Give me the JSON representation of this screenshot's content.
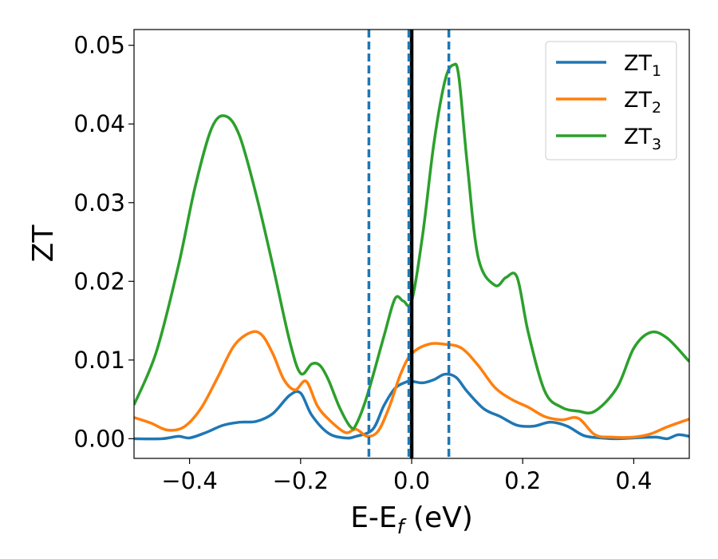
{
  "chart_data": {
    "type": "line",
    "xlabel": {
      "main": "E-E",
      "sub": "f",
      "unit": " (eV)"
    },
    "ylabel": "ZT",
    "xlim": [
      -0.5,
      0.5
    ],
    "ylim": [
      -0.0025,
      0.052
    ],
    "xticks": [
      -0.4,
      -0.2,
      0.0,
      0.2,
      0.4
    ],
    "xtick_labels": [
      "−0.4",
      "−0.2",
      "0.0",
      "0.2",
      "0.4"
    ],
    "yticks": [
      0.0,
      0.01,
      0.02,
      0.03,
      0.04,
      0.05
    ],
    "ytick_labels": [
      "0.00",
      "0.01",
      "0.02",
      "0.03",
      "0.04",
      "0.05"
    ],
    "grid": false,
    "legend_position": "top-right",
    "reference_lines": [
      {
        "x": 0.0,
        "style": "solid",
        "color": "#000000"
      },
      {
        "x": -0.077,
        "style": "dashed",
        "color": "#1f77b4"
      },
      {
        "x": -0.005,
        "style": "dashed",
        "color": "#1f77b4"
      },
      {
        "x": 0.067,
        "style": "dashed",
        "color": "#1f77b4"
      }
    ],
    "series": [
      {
        "name": "ZT",
        "sub": "1",
        "color": "#1f77b4",
        "x": [
          -0.5,
          -0.45,
          -0.42,
          -0.4,
          -0.37,
          -0.34,
          -0.31,
          -0.28,
          -0.25,
          -0.22,
          -0.2,
          -0.18,
          -0.15,
          -0.12,
          -0.1,
          -0.07,
          -0.05,
          -0.03,
          -0.01,
          0.0,
          0.02,
          0.04,
          0.06,
          0.08,
          0.1,
          0.13,
          0.16,
          0.19,
          0.22,
          0.25,
          0.28,
          0.31,
          0.34,
          0.37,
          0.4,
          0.44,
          0.46,
          0.48,
          0.5
        ],
        "y": [
          0.0,
          0.0,
          0.0003,
          0.0001,
          0.0008,
          0.0017,
          0.0021,
          0.0022,
          0.0032,
          0.0055,
          0.0058,
          0.003,
          0.0007,
          0.0001,
          0.0003,
          0.0012,
          0.0042,
          0.0064,
          0.0072,
          0.0073,
          0.0071,
          0.0075,
          0.0082,
          0.0078,
          0.006,
          0.0038,
          0.0028,
          0.0017,
          0.0016,
          0.0021,
          0.0016,
          0.0004,
          0.0001,
          0.0,
          0.0001,
          0.0002,
          0.0,
          0.0005,
          0.0003
        ]
      },
      {
        "name": "ZT",
        "sub": "2",
        "color": "#ff7f0e",
        "x": [
          -0.5,
          -0.47,
          -0.44,
          -0.41,
          -0.38,
          -0.35,
          -0.32,
          -0.29,
          -0.27,
          -0.25,
          -0.23,
          -0.21,
          -0.19,
          -0.17,
          -0.15,
          -0.12,
          -0.1,
          -0.08,
          -0.06,
          -0.04,
          -0.02,
          0.0,
          0.03,
          0.06,
          0.09,
          0.12,
          0.15,
          0.18,
          0.21,
          0.24,
          0.27,
          0.3,
          0.33,
          0.36,
          0.4,
          0.43,
          0.46,
          0.5
        ],
        "y": [
          0.0027,
          0.002,
          0.0011,
          0.0015,
          0.0038,
          0.0077,
          0.0118,
          0.0135,
          0.0132,
          0.0108,
          0.0075,
          0.0062,
          0.0073,
          0.0042,
          0.0025,
          0.0008,
          0.0012,
          0.0003,
          0.001,
          0.0041,
          0.0082,
          0.0108,
          0.012,
          0.012,
          0.0115,
          0.0093,
          0.0065,
          0.005,
          0.004,
          0.0028,
          0.0024,
          0.0026,
          0.0005,
          0.0002,
          0.0002,
          0.0006,
          0.0015,
          0.0025
        ]
      },
      {
        "name": "ZT",
        "sub": "3",
        "color": "#2ca02c",
        "x": [
          -0.5,
          -0.46,
          -0.42,
          -0.39,
          -0.36,
          -0.335,
          -0.31,
          -0.28,
          -0.25,
          -0.22,
          -0.2,
          -0.18,
          -0.165,
          -0.15,
          -0.13,
          -0.11,
          -0.1,
          -0.08,
          -0.05,
          -0.03,
          -0.015,
          0.0,
          0.02,
          0.04,
          0.06,
          0.075,
          0.085,
          0.1,
          0.12,
          0.15,
          0.17,
          0.19,
          0.21,
          0.24,
          0.27,
          0.3,
          0.33,
          0.37,
          0.4,
          0.43,
          0.46,
          0.5
        ],
        "y": [
          0.0043,
          0.011,
          0.022,
          0.032,
          0.0395,
          0.041,
          0.0385,
          0.031,
          0.022,
          0.0125,
          0.0083,
          0.0095,
          0.0093,
          0.0075,
          0.004,
          0.0015,
          0.0018,
          0.0055,
          0.013,
          0.0178,
          0.0175,
          0.0175,
          0.026,
          0.0375,
          0.0455,
          0.0475,
          0.046,
          0.035,
          0.023,
          0.0195,
          0.0205,
          0.0205,
          0.0135,
          0.006,
          0.004,
          0.0035,
          0.0035,
          0.0065,
          0.0115,
          0.0135,
          0.0128,
          0.0098
        ]
      }
    ]
  }
}
